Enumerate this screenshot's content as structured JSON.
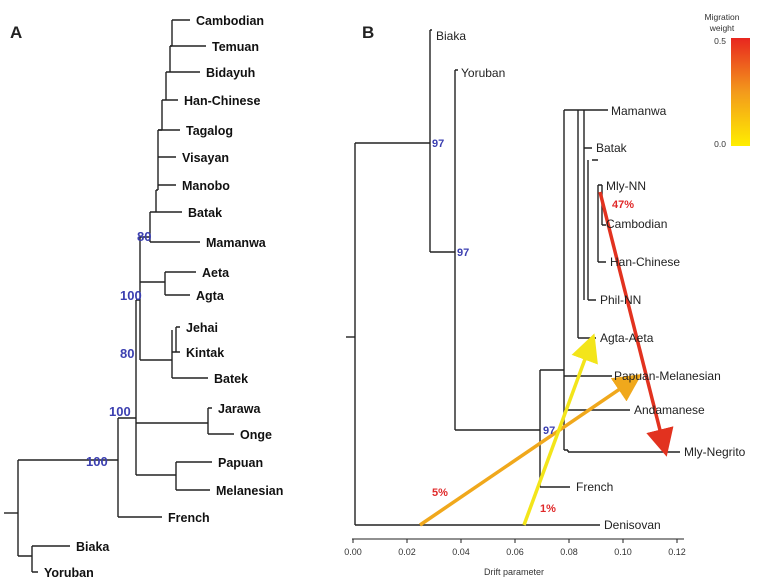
{
  "panelA": {
    "letter": "A",
    "leaves": [
      "Cambodian",
      "Temuan",
      "Bidayuh",
      "Han-Chinese",
      "Tagalog",
      "Visayan",
      "Manobo",
      "Batak",
      "Mamanwa",
      "Aeta",
      "Agta",
      "Jehai",
      "Kintak",
      "Batek",
      "Jarawa",
      "Onge",
      "Papuan",
      "Melanesian",
      "French",
      "Biaka",
      "Yoruban"
    ],
    "bootstrap": [
      "80",
      "100",
      "80",
      "100",
      "100"
    ]
  },
  "panelB": {
    "letter": "B",
    "leaves": [
      "Biaka",
      "Yoruban",
      "Mamanwa",
      "Batak",
      "Mly-NN",
      "Cambodian",
      "Han-Chinese",
      "Phil-NN",
      "Agta-Aeta",
      "Papuan-Melanesian",
      "Andamanese",
      "Mly-Negrito",
      "French",
      "Denisovan"
    ],
    "bootstrap": [
      "97",
      "97",
      "97"
    ],
    "migration_percents": [
      "47%",
      "5%",
      "1%"
    ],
    "xaxis": {
      "label": "Drift parameter",
      "ticks": [
        "0.00",
        "0.02",
        "0.04",
        "0.06",
        "0.08",
        "0.10",
        "0.12"
      ]
    },
    "legend": {
      "title_line1": "Migration",
      "title_line2": "weight",
      "max": "0.5",
      "min": "0.0",
      "color_high": "#e8261f",
      "color_low": "#ffee00"
    },
    "colors": {
      "bootstrap": "#3b3fb0",
      "percent": "#e0292a",
      "arrow_red": "#e2321f",
      "arrow_orange": "#f0a81c",
      "arrow_yellow": "#f3e51a"
    }
  }
}
